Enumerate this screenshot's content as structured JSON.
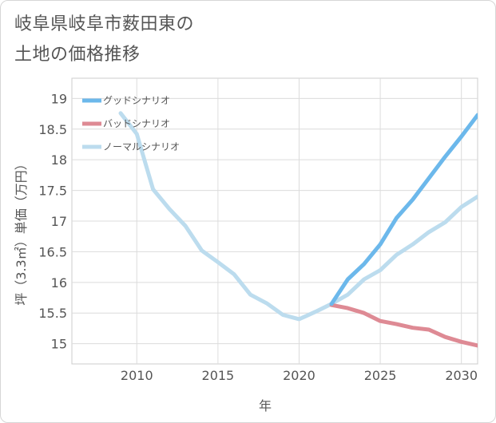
{
  "title_line1": "岐阜県岐阜市薮田東の",
  "title_line2": "土地の価格推移",
  "chart_data": {
    "type": "line",
    "xlabel": "年",
    "ylabel": "坪（3.3㎡）単価（万円）",
    "xlim": [
      2006,
      2031
    ],
    "ylim": [
      14.67,
      19.33
    ],
    "xticks": [
      2010,
      2015,
      2020,
      2025,
      2030
    ],
    "yticks": [
      15,
      15.5,
      16,
      16.5,
      17,
      17.5,
      18,
      18.5,
      19
    ],
    "ytick_labels": [
      "15",
      "15.5",
      "16",
      "16.5",
      "17",
      "17.5",
      "18",
      "18.5",
      "19"
    ],
    "xtick_labels": [
      "2010",
      "2015",
      "2020",
      "2025",
      "2030"
    ],
    "grid": true,
    "legend_position": "top-left",
    "series": [
      {
        "name": "グッドシナリオ",
        "color": "#6cb8eb",
        "x": [
          2022,
          2023,
          2024,
          2025,
          2026,
          2027,
          2028,
          2029,
          2030,
          2031
        ],
        "y": [
          15.65,
          16.05,
          16.3,
          16.62,
          17.05,
          17.35,
          17.7,
          18.05,
          18.38,
          18.73
        ]
      },
      {
        "name": "バッドシナリオ",
        "color": "#de8a94",
        "x": [
          2022,
          2023,
          2024,
          2025,
          2026,
          2027,
          2028,
          2029,
          2030,
          2031
        ],
        "y": [
          15.63,
          15.58,
          15.5,
          15.37,
          15.32,
          15.26,
          15.23,
          15.11,
          15.03,
          14.97
        ]
      },
      {
        "name": "ノーマルシナリオ",
        "color": "#bcdcee",
        "x": [
          2009,
          2010,
          2011,
          2012,
          2013,
          2014,
          2015,
          2016,
          2017,
          2018,
          2019,
          2020,
          2021,
          2022,
          2023,
          2024,
          2025,
          2026,
          2027,
          2028,
          2029,
          2030,
          2031
        ],
        "y": [
          18.76,
          18.42,
          17.52,
          17.2,
          16.92,
          16.52,
          16.33,
          16.13,
          15.8,
          15.66,
          15.47,
          15.4,
          15.52,
          15.65,
          15.8,
          16.05,
          16.2,
          16.45,
          16.62,
          16.82,
          16.98,
          17.23,
          17.4
        ]
      }
    ]
  }
}
